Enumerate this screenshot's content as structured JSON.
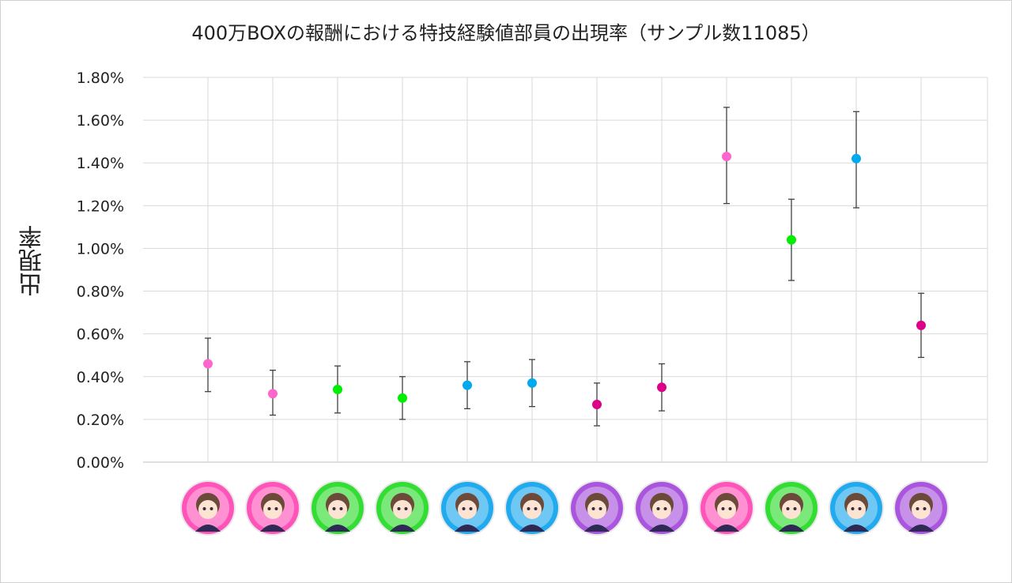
{
  "chart_data": {
    "type": "scatter",
    "title": "400万BOXの報酬における特技経験値部員の出現率（サンプル数11085）",
    "xlabel": "",
    "ylabel": "出現率",
    "ylim": [
      0,
      1.8
    ],
    "y_ticks": [
      "0.00%",
      "0.20%",
      "0.40%",
      "0.60%",
      "0.80%",
      "1.00%",
      "1.20%",
      "1.40%",
      "1.60%",
      "1.80%"
    ],
    "grid": true,
    "categories": [
      "member-1",
      "member-2",
      "member-3",
      "member-4",
      "member-5",
      "member-6",
      "member-7",
      "member-8",
      "member-9",
      "member-10",
      "member-11",
      "member-12"
    ],
    "series": [
      {
        "name": "出現率",
        "values": [
          0.46,
          0.32,
          0.34,
          0.3,
          0.36,
          0.37,
          0.27,
          0.35,
          1.43,
          1.04,
          1.42,
          0.64
        ],
        "err_low": [
          0.33,
          0.22,
          0.23,
          0.2,
          0.25,
          0.26,
          0.17,
          0.24,
          1.21,
          0.85,
          1.19,
          0.49
        ],
        "err_high": [
          0.58,
          0.43,
          0.45,
          0.4,
          0.47,
          0.48,
          0.37,
          0.46,
          1.66,
          1.23,
          1.64,
          0.79
        ],
        "colors": [
          "#ff66cc",
          "#ff66cc",
          "#00ee00",
          "#00ee00",
          "#00aaee",
          "#00aaee",
          "#dd0088",
          "#dd0088",
          "#ff66cc",
          "#00ee00",
          "#00aaee",
          "#dd0088"
        ]
      }
    ],
    "icon_rings": [
      "#ff55bb",
      "#ff55bb",
      "#33dd33",
      "#33dd33",
      "#22aaee",
      "#22aaee",
      "#aa55dd",
      "#aa55dd",
      "#ff55bb",
      "#33dd33",
      "#22aaee",
      "#aa55dd"
    ]
  }
}
